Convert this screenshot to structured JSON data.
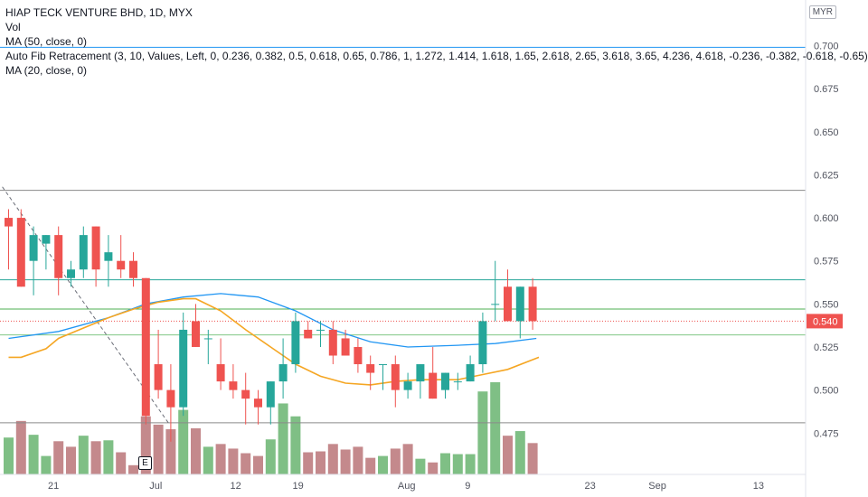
{
  "header": {
    "symbol_line": "HIAP TECK VENTURE BHD, 1D, MYX",
    "vol_label": "Vol",
    "ma50_label": "MA (50, close, 0)",
    "fib_label": "Auto Fib Retracement (3, 10, Values, Left, 0, 0.236, 0.382, 0.5, 0.618, 0.65, 0.786, 1, 1.272, 1.414, 1.618, 1.65, 2.618, 2.65, 3.618, 3.65, 4.236, 4.618, -0.236, -0.382, -0.618, -0.65)",
    "ma20_label": "MA (20, close, 0)",
    "currency": "MYR"
  },
  "earnings_marker": "E",
  "chart_data": {
    "type": "candlestick",
    "ylim": [
      0.451,
      0.716
    ],
    "y_ticks": [
      "0.700",
      "0.675",
      "0.650",
      "0.625",
      "0.600",
      "0.575",
      "0.550",
      "0.525",
      "0.500",
      "0.475"
    ],
    "x_ticks": [
      {
        "label": "21",
        "index": 3.6
      },
      {
        "label": "Jul",
        "index": 11.8
      },
      {
        "label": "12",
        "index": 18.2
      },
      {
        "label": "19",
        "index": 23.2
      },
      {
        "label": "Aug",
        "index": 31.9
      },
      {
        "label": "9",
        "index": 36.8
      },
      {
        "label": "23",
        "index": 46.6
      },
      {
        "label": "Sep",
        "index": 52.0
      },
      {
        "label": "13",
        "index": 60.1
      }
    ],
    "last_price": "0.540",
    "candles": [
      {
        "o": 0.6,
        "h": 0.605,
        "l": 0.57,
        "c": 0.595
      },
      {
        "o": 0.6,
        "h": 0.605,
        "l": 0.56,
        "c": 0.56
      },
      {
        "o": 0.575,
        "h": 0.595,
        "l": 0.555,
        "c": 0.59
      },
      {
        "o": 0.585,
        "h": 0.59,
        "l": 0.57,
        "c": 0.59
      },
      {
        "o": 0.59,
        "h": 0.595,
        "l": 0.555,
        "c": 0.565
      },
      {
        "o": 0.565,
        "h": 0.575,
        "l": 0.56,
        "c": 0.57
      },
      {
        "o": 0.57,
        "h": 0.595,
        "l": 0.565,
        "c": 0.59
      },
      {
        "o": 0.595,
        "h": 0.595,
        "l": 0.56,
        "c": 0.57
      },
      {
        "o": 0.575,
        "h": 0.59,
        "l": 0.56,
        "c": 0.58
      },
      {
        "o": 0.575,
        "h": 0.59,
        "l": 0.565,
        "c": 0.57
      },
      {
        "o": 0.575,
        "h": 0.58,
        "l": 0.56,
        "c": 0.565
      },
      {
        "o": 0.565,
        "h": 0.565,
        "l": 0.48,
        "c": 0.485
      },
      {
        "o": 0.515,
        "h": 0.535,
        "l": 0.495,
        "c": 0.5
      },
      {
        "o": 0.5,
        "h": 0.515,
        "l": 0.47,
        "c": 0.49
      },
      {
        "o": 0.49,
        "h": 0.545,
        "l": 0.485,
        "c": 0.535
      },
      {
        "o": 0.54,
        "h": 0.55,
        "l": 0.525,
        "c": 0.525
      },
      {
        "o": 0.53,
        "h": 0.535,
        "l": 0.515,
        "c": 0.53
      },
      {
        "o": 0.515,
        "h": 0.53,
        "l": 0.5,
        "c": 0.505
      },
      {
        "o": 0.505,
        "h": 0.515,
        "l": 0.495,
        "c": 0.5
      },
      {
        "o": 0.5,
        "h": 0.51,
        "l": 0.48,
        "c": 0.495
      },
      {
        "o": 0.495,
        "h": 0.5,
        "l": 0.48,
        "c": 0.49
      },
      {
        "o": 0.49,
        "h": 0.505,
        "l": 0.48,
        "c": 0.505
      },
      {
        "o": 0.505,
        "h": 0.53,
        "l": 0.495,
        "c": 0.515
      },
      {
        "o": 0.515,
        "h": 0.545,
        "l": 0.51,
        "c": 0.54
      },
      {
        "o": 0.535,
        "h": 0.54,
        "l": 0.53,
        "c": 0.53
      },
      {
        "o": 0.535,
        "h": 0.54,
        "l": 0.525,
        "c": 0.535
      },
      {
        "o": 0.535,
        "h": 0.54,
        "l": 0.515,
        "c": 0.52
      },
      {
        "o": 0.53,
        "h": 0.535,
        "l": 0.52,
        "c": 0.52
      },
      {
        "o": 0.525,
        "h": 0.53,
        "l": 0.51,
        "c": 0.515
      },
      {
        "o": 0.515,
        "h": 0.52,
        "l": 0.5,
        "c": 0.51
      },
      {
        "o": 0.515,
        "h": 0.515,
        "l": 0.5,
        "c": 0.515
      },
      {
        "o": 0.515,
        "h": 0.52,
        "l": 0.49,
        "c": 0.5
      },
      {
        "o": 0.5,
        "h": 0.51,
        "l": 0.495,
        "c": 0.505
      },
      {
        "o": 0.505,
        "h": 0.515,
        "l": 0.495,
        "c": 0.515
      },
      {
        "o": 0.51,
        "h": 0.525,
        "l": 0.495,
        "c": 0.495
      },
      {
        "o": 0.5,
        "h": 0.51,
        "l": 0.495,
        "c": 0.51
      },
      {
        "o": 0.505,
        "h": 0.51,
        "l": 0.5,
        "c": 0.505
      },
      {
        "o": 0.505,
        "h": 0.52,
        "l": 0.505,
        "c": 0.515
      },
      {
        "o": 0.515,
        "h": 0.545,
        "l": 0.51,
        "c": 0.54
      },
      {
        "o": 0.55,
        "h": 0.575,
        "l": 0.54,
        "c": 0.55
      },
      {
        "o": 0.56,
        "h": 0.57,
        "l": 0.54,
        "c": 0.54
      },
      {
        "o": 0.54,
        "h": 0.56,
        "l": 0.53,
        "c": 0.56
      },
      {
        "o": 0.56,
        "h": 0.565,
        "l": 0.535,
        "c": 0.54
      }
    ],
    "volume": [
      {
        "v": 0.4,
        "color": "green"
      },
      {
        "v": 0.58,
        "color": "red"
      },
      {
        "v": 0.43,
        "color": "green"
      },
      {
        "v": 0.2,
        "color": "green"
      },
      {
        "v": 0.36,
        "color": "red"
      },
      {
        "v": 0.3,
        "color": "red"
      },
      {
        "v": 0.42,
        "color": "green"
      },
      {
        "v": 0.36,
        "color": "red"
      },
      {
        "v": 0.37,
        "color": "green"
      },
      {
        "v": 0.24,
        "color": "red"
      },
      {
        "v": 0.1,
        "color": "red"
      },
      {
        "v": 0.63,
        "color": "red"
      },
      {
        "v": 0.54,
        "color": "red"
      },
      {
        "v": 0.49,
        "color": "red"
      },
      {
        "v": 0.7,
        "color": "green"
      },
      {
        "v": 0.5,
        "color": "red"
      },
      {
        "v": 0.3,
        "color": "green"
      },
      {
        "v": 0.33,
        "color": "red"
      },
      {
        "v": 0.28,
        "color": "red"
      },
      {
        "v": 0.23,
        "color": "red"
      },
      {
        "v": 0.2,
        "color": "red"
      },
      {
        "v": 0.38,
        "color": "green"
      },
      {
        "v": 0.77,
        "color": "green"
      },
      {
        "v": 0.63,
        "color": "green"
      },
      {
        "v": 0.24,
        "color": "red"
      },
      {
        "v": 0.25,
        "color": "red"
      },
      {
        "v": 0.33,
        "color": "red"
      },
      {
        "v": 0.27,
        "color": "red"
      },
      {
        "v": 0.3,
        "color": "red"
      },
      {
        "v": 0.18,
        "color": "red"
      },
      {
        "v": 0.2,
        "color": "green"
      },
      {
        "v": 0.28,
        "color": "red"
      },
      {
        "v": 0.33,
        "color": "red"
      },
      {
        "v": 0.17,
        "color": "green"
      },
      {
        "v": 0.13,
        "color": "red"
      },
      {
        "v": 0.23,
        "color": "green"
      },
      {
        "v": 0.22,
        "color": "green"
      },
      {
        "v": 0.22,
        "color": "green"
      },
      {
        "v": 0.9,
        "color": "green"
      },
      {
        "v": 1.0,
        "color": "green"
      },
      {
        "v": 0.42,
        "color": "red"
      },
      {
        "v": 0.47,
        "color": "green"
      },
      {
        "v": 0.34,
        "color": "red"
      }
    ],
    "ma50": [
      {
        "i": 0,
        "v": 0.53
      },
      {
        "i": 4,
        "v": 0.534
      },
      {
        "i": 8,
        "v": 0.542
      },
      {
        "i": 11,
        "v": 0.55
      },
      {
        "i": 14,
        "v": 0.554
      },
      {
        "i": 17,
        "v": 0.556
      },
      {
        "i": 20,
        "v": 0.554
      },
      {
        "i": 23,
        "v": 0.546
      },
      {
        "i": 26,
        "v": 0.535
      },
      {
        "i": 29,
        "v": 0.528
      },
      {
        "i": 32,
        "v": 0.525
      },
      {
        "i": 36,
        "v": 0.526
      },
      {
        "i": 39,
        "v": 0.527
      },
      {
        "i": 42.3,
        "v": 0.53
      }
    ],
    "ma20": [
      {
        "i": 0,
        "v": 0.519
      },
      {
        "i": 1,
        "v": 0.519
      },
      {
        "i": 3,
        "v": 0.524
      },
      {
        "i": 4,
        "v": 0.53
      },
      {
        "i": 6,
        "v": 0.536
      },
      {
        "i": 8,
        "v": 0.542
      },
      {
        "i": 10,
        "v": 0.547
      },
      {
        "i": 12,
        "v": 0.551
      },
      {
        "i": 14,
        "v": 0.553
      },
      {
        "i": 15,
        "v": 0.553
      },
      {
        "i": 17,
        "v": 0.546
      },
      {
        "i": 19,
        "v": 0.535
      },
      {
        "i": 21,
        "v": 0.525
      },
      {
        "i": 23,
        "v": 0.515
      },
      {
        "i": 25,
        "v": 0.508
      },
      {
        "i": 27,
        "v": 0.504
      },
      {
        "i": 29,
        "v": 0.503
      },
      {
        "i": 31,
        "v": 0.505
      },
      {
        "i": 33,
        "v": 0.506
      },
      {
        "i": 36,
        "v": 0.506
      },
      {
        "i": 38,
        "v": 0.509
      },
      {
        "i": 40,
        "v": 0.512
      },
      {
        "i": 42.5,
        "v": 0.519
      }
    ],
    "hlines": [
      {
        "v": 0.616,
        "color": "#8a8a8a"
      },
      {
        "v": 0.564,
        "color": "#26a69a"
      },
      {
        "v": 0.547,
        "color": "#4caf50"
      },
      {
        "v": 0.532,
        "color": "#81c784"
      },
      {
        "v": 0.481,
        "color": "#8a8a8a"
      }
    ],
    "fib_top_line": {
      "v": 0.699,
      "color": "#2196f3"
    },
    "trend_line": {
      "from": {
        "i": -0.5,
        "v": 0.618
      },
      "to": {
        "i": 12.8,
        "v": 0.481
      }
    },
    "colors": {
      "up": "#26a69a",
      "down": "#ef5350",
      "vol_up": "#7fbf85",
      "vol_down": "#c4898c",
      "ma50": "#2196f3",
      "ma20": "#f5a623",
      "price_tag": "#ef5350"
    }
  }
}
